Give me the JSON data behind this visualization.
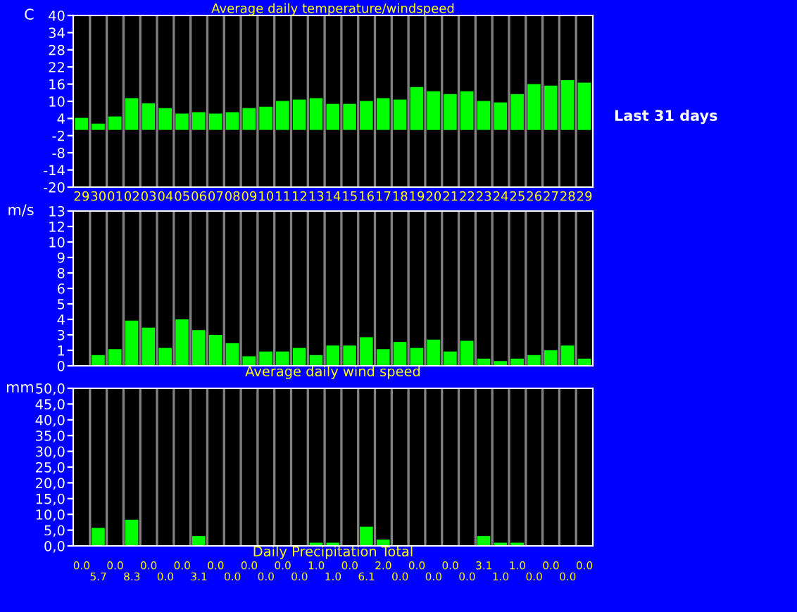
{
  "chart_data": [
    {
      "type": "bar",
      "title": "Average daily temperature/windspeed",
      "ylabel": "C",
      "color": "#00ff00",
      "grid": "x",
      "categories": [
        "29",
        "30",
        "01",
        "02",
        "03",
        "04",
        "05",
        "06",
        "07",
        "08",
        "09",
        "10",
        "11",
        "12",
        "13",
        "14",
        "15",
        "16",
        "17",
        "18",
        "19",
        "20",
        "21",
        "22",
        "23",
        "24",
        "25",
        "26",
        "27",
        "28",
        "29"
      ],
      "values": [
        4.2,
        2.2,
        4.7,
        11.1,
        9.3,
        7.6,
        5.7,
        6.2,
        5.7,
        6.2,
        7.6,
        8.1,
        10.1,
        10.6,
        11.1,
        9.1,
        9.1,
        10.1,
        11.1,
        10.6,
        15.0,
        13.5,
        12.5,
        13.5,
        10.1,
        9.6,
        12.5,
        16.0,
        15.5,
        17.4,
        16.5
      ],
      "ylim": [
        -20,
        40
      ],
      "yticks": [
        -20,
        -14,
        -8,
        -2,
        4,
        10,
        16,
        22,
        28,
        34,
        40
      ],
      "annotations": [
        "Last 31 days"
      ]
    },
    {
      "type": "bar",
      "xlabel": "Average daily wind speed",
      "ylabel": "m/s",
      "color": "#00ff00",
      "grid": "x",
      "tick_labels": "y",
      "categories": [
        "29",
        "30",
        "01",
        "02",
        "03",
        "04",
        "05",
        "06",
        "07",
        "08",
        "09",
        "10",
        "11",
        "12",
        "13",
        "14",
        "15",
        "16",
        "17",
        "18",
        "19",
        "20",
        "21",
        "22",
        "23",
        "24",
        "25",
        "26",
        "27",
        "28",
        "29"
      ],
      "values": [
        0,
        0.9,
        1.4,
        3.8,
        3.2,
        1.5,
        3.9,
        3.0,
        2.6,
        1.9,
        0.8,
        1.2,
        1.2,
        1.5,
        0.9,
        1.7,
        1.7,
        2.4,
        1.4,
        2.0,
        1.5,
        2.2,
        1.2,
        2.1,
        0.6,
        0.4,
        0.6,
        0.9,
        1.3,
        1.7,
        0.6
      ],
      "ylim": [
        0,
        13
      ],
      "yticks": [
        0,
        {
          "value": 1.3,
          "label": "1"
        },
        {
          "value": 2.6,
          "label": "3"
        },
        {
          "value": 3.9,
          "label": "4"
        },
        {
          "value": 5.2,
          "label": "5"
        },
        {
          "value": 6.5,
          "label": "6"
        },
        {
          "value": 7.8,
          "label": "8"
        },
        {
          "value": 9.1,
          "label": "9"
        },
        {
          "value": 10.4,
          "label": "10"
        },
        {
          "value": 11.7,
          "label": "12"
        },
        13
      ]
    },
    {
      "type": "bar",
      "xlabel": "Daily Precipitation Total",
      "ylabel": "mm",
      "color": "#00ff00",
      "grid": "x",
      "tick_labels": "y",
      "categories": [
        "29",
        "30",
        "01",
        "02",
        "03",
        "04",
        "05",
        "06",
        "07",
        "08",
        "09",
        "10",
        "11",
        "12",
        "13",
        "14",
        "15",
        "16",
        "17",
        "18",
        "19",
        "20",
        "21",
        "22",
        "23",
        "24",
        "25",
        "26",
        "27",
        "28",
        "29"
      ],
      "values": [
        0,
        5.7,
        0,
        8.3,
        0,
        0,
        0,
        3.1,
        0,
        0,
        0,
        0,
        0,
        0,
        1.0,
        1.0,
        0,
        6.1,
        2.0,
        0,
        0,
        0,
        0,
        0,
        3.1,
        1.0,
        1.0,
        0,
        0,
        0,
        0
      ],
      "value_labels": [
        "0.0",
        "5.7",
        "0.0",
        "8.3",
        "0.0",
        "0.0",
        "0.0",
        "3.1",
        "0.0",
        "0.0",
        "0.0",
        "0.0",
        "0.0",
        "0.0",
        "1.0",
        "1.0",
        "0.0",
        "6.1",
        "2.0",
        "0.0",
        "0.0",
        "0.0",
        "0.0",
        "0.0",
        "3.1",
        "1.0",
        "1.0",
        "0.0",
        "0.0",
        "0.0",
        "0.0"
      ],
      "ylim": [
        0,
        50
      ],
      "yticks": [
        {
          "value": 0,
          "label": "0,0"
        },
        {
          "value": 5,
          "label": "5,0"
        },
        {
          "value": 10,
          "label": "10,0"
        },
        {
          "value": 15,
          "label": "15,0"
        },
        {
          "value": 20,
          "label": "20,0"
        },
        {
          "value": 25,
          "label": "25,0"
        },
        {
          "value": 30,
          "label": "30,0"
        },
        {
          "value": 35,
          "label": "35,0"
        },
        {
          "value": 40,
          "label": "40,0"
        },
        {
          "value": 45,
          "label": "45,0"
        },
        {
          "value": 50,
          "label": "50,0"
        }
      ]
    }
  ]
}
